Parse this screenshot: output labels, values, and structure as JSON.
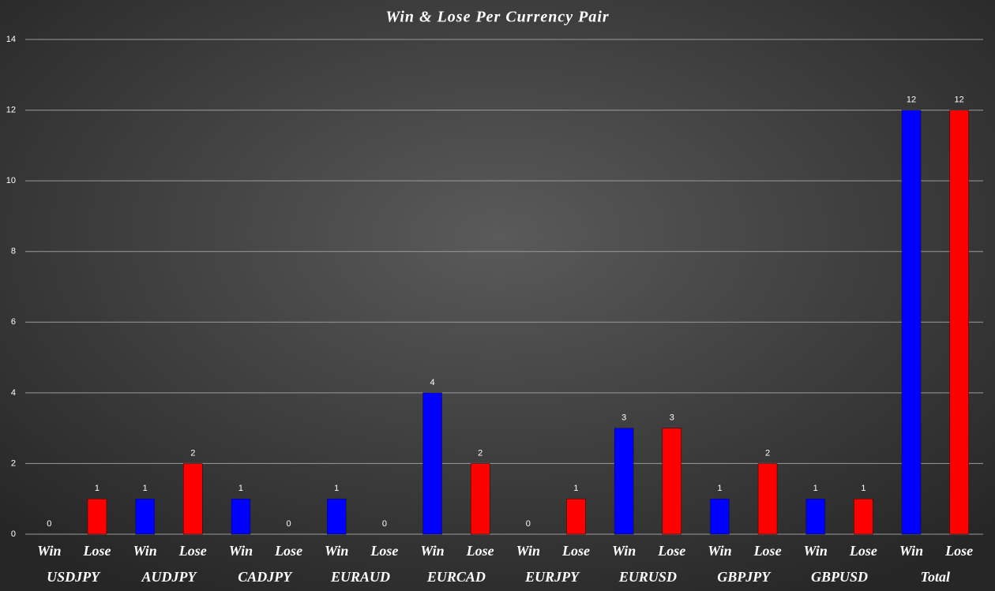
{
  "chart_data": {
    "type": "bar",
    "title": "Win & Lose Per Currency Pair",
    "categories": [
      "Win",
      "Lose",
      "Win",
      "Lose",
      "Win",
      "Lose",
      "Win",
      "Lose",
      "Win",
      "Lose",
      "Win",
      "Lose",
      "Win",
      "Lose",
      "Win",
      "Lose",
      "Win",
      "Lose",
      "Win",
      "Lose"
    ],
    "groups": [
      "USDJPY",
      "AUDJPY",
      "CADJPY",
      "EURAUD",
      "EURCAD",
      "EURJPY",
      "EURUSD",
      "GBPJPY",
      "GBPUSD",
      "Total"
    ],
    "values": [
      0,
      1,
      1,
      2,
      1,
      0,
      1,
      0,
      4,
      2,
      0,
      1,
      3,
      3,
      1,
      2,
      1,
      1,
      12,
      12
    ],
    "colors": [
      "#0000ff",
      "#ff0000",
      "#0000ff",
      "#ff0000",
      "#0000ff",
      "#ff0000",
      "#0000ff",
      "#ff0000",
      "#0000ff",
      "#ff0000",
      "#0000ff",
      "#ff0000",
      "#0000ff",
      "#ff0000",
      "#0000ff",
      "#ff0000",
      "#0000ff",
      "#ff0000",
      "#0000ff",
      "#ff0000"
    ],
    "ylim": [
      0,
      14
    ],
    "yticks": [
      0,
      2,
      4,
      6,
      8,
      10,
      12,
      14
    ],
    "grid": true
  }
}
